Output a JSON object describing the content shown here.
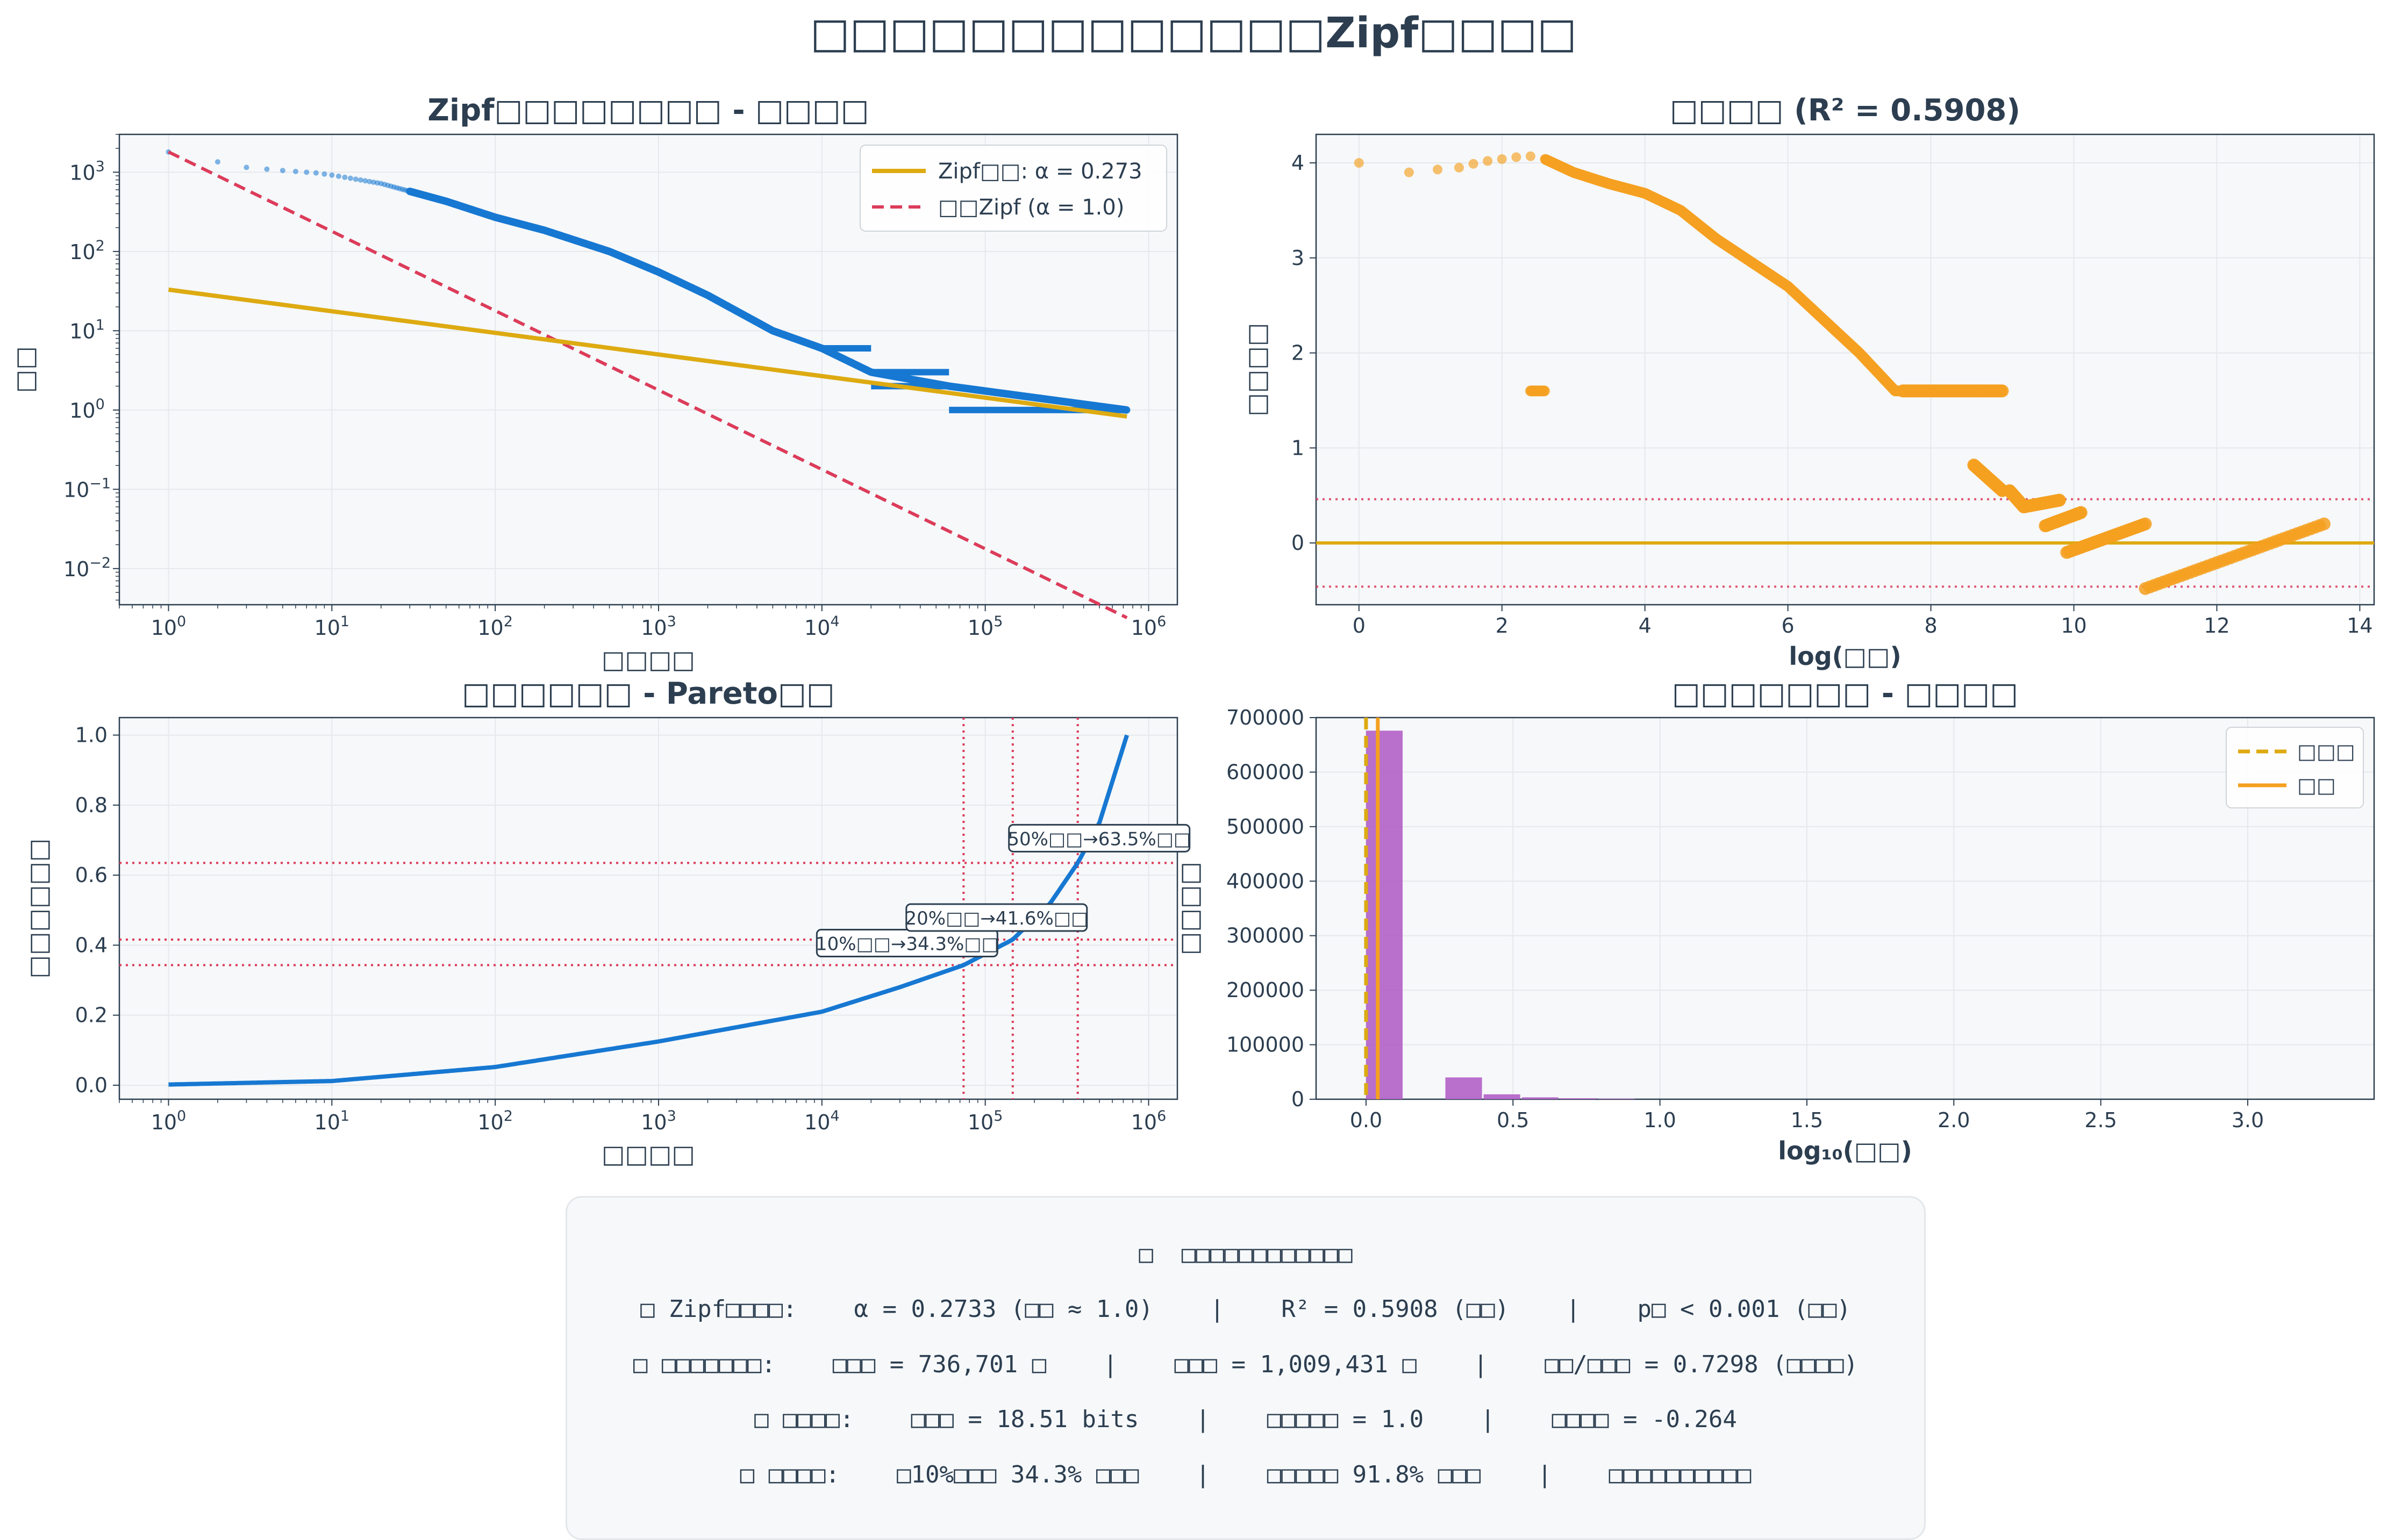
{
  "figure": {
    "suptitle": "□□□□□□□□□□□□□Zipf□□□□"
  },
  "colors": {
    "text": "#2c3e50",
    "panel_bg": "#f6f8fa",
    "blue": "#1778d2",
    "gold": "#ddaa11",
    "red": "#dc3c5a",
    "orange": "#f5a020",
    "purple": "#b35fc6"
  },
  "chart_data": [
    {
      "id": "zipf",
      "type": "scatter",
      "title": "Zipf□□□□□□□□ - □□□□",
      "xlabel": "□□□□",
      "ylabel": "□□",
      "xscale": "log",
      "yscale": "log",
      "xlim": [
        0.5,
        1500000
      ],
      "ylim": [
        0.0035,
        3000
      ],
      "x_ticks": [
        "10^0",
        "10^1",
        "10^2",
        "10^3",
        "10^4",
        "10^5",
        "10^6"
      ],
      "y_ticks": [
        "10^-2",
        "10^-1",
        "10^0",
        "10^1",
        "10^2",
        "10^3"
      ],
      "grid": true,
      "legend": "top-right",
      "legend_entries": [
        "Zipf□□: α = 0.273",
        "□□Zipf (α = 1.0)"
      ],
      "observed_points": [
        [
          1,
          1800
        ],
        [
          2,
          1350
        ],
        [
          3,
          1150
        ],
        [
          5,
          1050
        ],
        [
          8,
          980
        ],
        [
          10,
          920
        ],
        [
          20,
          720
        ],
        [
          50,
          430
        ],
        [
          100,
          270
        ],
        [
          200,
          185
        ],
        [
          500,
          100
        ],
        [
          1000,
          55
        ],
        [
          2000,
          28
        ],
        [
          5000,
          10
        ],
        [
          10000,
          6
        ],
        [
          20000,
          3
        ],
        [
          60000,
          2
        ],
        [
          736701,
          1
        ]
      ],
      "fit_line": {
        "name": "Zipf□□: α = 0.273",
        "alpha": 0.273,
        "points": [
          [
            1,
            33
          ],
          [
            736701,
            0.83
          ]
        ]
      },
      "reference_line": {
        "name": "□□Zipf (α = 1.0)",
        "alpha": 1.0,
        "points": [
          [
            1,
            1800
          ],
          [
            736701,
            0.0024
          ]
        ]
      }
    },
    {
      "id": "residuals",
      "type": "scatter",
      "title": "□□□□ (R² = 0.5908)",
      "xlabel": "log(□□)",
      "ylabel": "□□□□",
      "xlim": [
        -0.6,
        14.2
      ],
      "ylim": [
        -0.65,
        4.3
      ],
      "x_ticks": [
        0,
        2,
        4,
        6,
        8,
        10,
        12,
        14
      ],
      "y_ticks": [
        0,
        1,
        2,
        3,
        4
      ],
      "grid": true,
      "zero_line": 0,
      "band": [
        -0.46,
        0.46
      ],
      "points": [
        [
          0,
          4.0
        ],
        [
          0.7,
          3.9
        ],
        [
          1.1,
          3.93
        ],
        [
          1.4,
          3.95
        ],
        [
          1.6,
          3.99
        ],
        [
          1.8,
          4.02
        ],
        [
          2.0,
          4.04
        ],
        [
          2.2,
          4.06
        ],
        [
          2.4,
          4.07
        ],
        [
          2.6,
          4.04
        ],
        [
          3.0,
          3.9
        ],
        [
          3.5,
          3.78
        ],
        [
          4.0,
          3.68
        ],
        [
          4.5,
          3.5
        ],
        [
          5.0,
          3.2
        ],
        [
          5.5,
          2.95
        ],
        [
          6.0,
          2.7
        ],
        [
          6.5,
          2.35
        ],
        [
          7.0,
          2.0
        ],
        [
          7.5,
          1.6
        ],
        [
          8.0,
          1.2
        ],
        [
          8.5,
          0.85
        ],
        [
          9.0,
          0.55
        ],
        [
          9.9,
          0.0
        ],
        [
          10.8,
          0.25
        ],
        [
          11.0,
          -0.48
        ],
        [
          12.5,
          -0.05
        ],
        [
          13.5,
          0.2
        ]
      ]
    },
    {
      "id": "pareto",
      "type": "line",
      "title": "□□□□□□ - Pareto□□",
      "xlabel": "□□□□",
      "ylabel": "□□□□□□",
      "xscale": "log",
      "xlim": [
        0.5,
        1500000
      ],
      "ylim": [
        -0.04,
        1.05
      ],
      "x_ticks": [
        "10^0",
        "10^1",
        "10^2",
        "10^3",
        "10^4",
        "10^5",
        "10^6"
      ],
      "y_ticks": [
        0.0,
        0.2,
        0.4,
        0.6,
        0.8,
        1.0
      ],
      "grid": true,
      "series": [
        {
          "values": [
            [
              1,
              0.002
            ],
            [
              10,
              0.012
            ],
            [
              100,
              0.052
            ],
            [
              1000,
              0.125
            ],
            [
              10000,
              0.21
            ],
            [
              30000,
              0.28
            ],
            [
              73670,
              0.343
            ],
            [
              147340,
              0.416
            ],
            [
              250000,
              0.52
            ],
            [
              368350,
              0.635
            ],
            [
              500000,
              0.75
            ],
            [
              736701,
              1.0
            ]
          ]
        }
      ],
      "hlines": [
        0.343,
        0.416,
        0.635
      ],
      "vlines": [
        73670,
        147340,
        368350
      ],
      "annotations": [
        {
          "text": "10%□□→34.3%□□",
          "x": 73670,
          "y": 0.343
        },
        {
          "text": "20%□□→41.6%□□",
          "x": 147340,
          "y": 0.416
        },
        {
          "text": "50%□□→63.5%□□",
          "x": 368350,
          "y": 0.635
        }
      ]
    },
    {
      "id": "hist",
      "type": "bar",
      "title": "□□□□□□□ - □□□□",
      "xlabel": "log₁₀(□□)",
      "ylabel": "□□□□",
      "xlim": [
        -0.17,
        3.43
      ],
      "ylim": [
        0,
        700000
      ],
      "x_ticks": [
        0.0,
        0.5,
        1.0,
        1.5,
        2.0,
        2.5,
        3.0
      ],
      "y_ticks": [
        0,
        100000,
        200000,
        300000,
        400000,
        500000,
        600000,
        700000
      ],
      "grid": true,
      "legend": "top-right",
      "bins": [
        [
          0.0,
          0.13,
          676000
        ],
        [
          0.27,
          0.4,
          40000
        ],
        [
          0.4,
          0.53,
          9000
        ],
        [
          0.53,
          0.66,
          3500
        ],
        [
          0.66,
          0.79,
          1800
        ],
        [
          0.79,
          0.92,
          900
        ]
      ],
      "vlines": [
        {
          "name": "□□□",
          "x": 0.0,
          "style": "dashed"
        },
        {
          "name": "□□",
          "x": 0.04,
          "style": "solid"
        }
      ]
    }
  ],
  "info": {
    "title": "□  □□□□□□□□□□□□",
    "line1": "□ Zipf□□□□:    α = 0.2733 (□□ ≈ 1.0)    |    R² = 0.5908 (□□)    |    p□ < 0.001 (□□)",
    "line2": "□ □□□□□□□:    □□□ = 736,701 □    |    □□□ = 1,009,431 □    |    □□/□□□ = 0.7298 (□□□□)",
    "line3": "□ □□□□:    □□□ = 18.51 bits    |    □□□□□ = 1.0    |    □□□□ = -0.264",
    "line4": "□ □□□□:    □10%□□□ 34.3% □□□    |    □□□□□ 91.8% □□□    |    □□□□□□□□□□"
  }
}
